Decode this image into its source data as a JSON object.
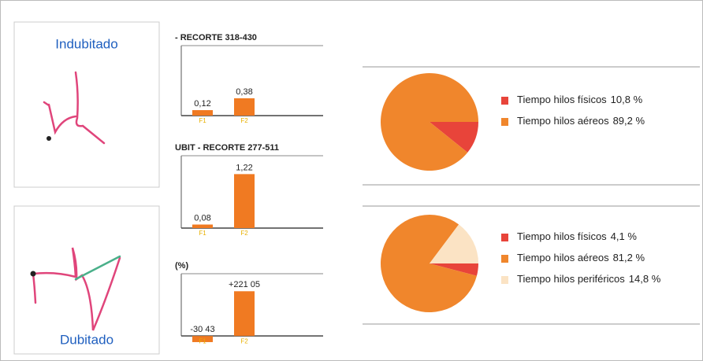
{
  "samples": [
    {
      "label": "Indubitado"
    },
    {
      "label": "Dubitado"
    }
  ],
  "bar_panels": [
    {
      "type": "bar",
      "title": "- RECORTE 318-430",
      "categories": [
        "F1",
        "F2"
      ],
      "values": [
        0.12,
        0.38
      ],
      "value_labels": [
        "0,12",
        "0,38"
      ],
      "color": "#f07a22",
      "ylim": [
        0,
        1.5
      ]
    },
    {
      "type": "bar",
      "title": "UBIT - RECORTE 277-511",
      "categories": [
        "F1",
        "F2"
      ],
      "values": [
        0.08,
        1.22
      ],
      "value_labels": [
        "0,08",
        "1,22"
      ],
      "color": "#f07a22",
      "ylim": [
        0,
        1.6
      ]
    },
    {
      "type": "bar",
      "title": "(%)",
      "categories": [
        "F1",
        "F2"
      ],
      "values": [
        -30.43,
        221.05
      ],
      "value_labels": [
        "-30 43",
        "+221 05"
      ],
      "color": "#f07a22",
      "ylim": [
        -50,
        300
      ]
    }
  ],
  "pies": [
    {
      "type": "pie",
      "series": [
        {
          "name": "Tiempo hilos físicos",
          "color": "#e8443a",
          "value": 10.8,
          "value_label": "10,8 %"
        },
        {
          "name": "Tiempo hilos aéreos",
          "color": "#f0862c",
          "value": 89.2,
          "value_label": "89,2 %"
        }
      ]
    },
    {
      "type": "pie",
      "series": [
        {
          "name": "Tiempo hilos físicos",
          "color": "#e8443a",
          "value": 4.1,
          "value_label": "4,1 %"
        },
        {
          "name": "Tiempo hilos aéreos",
          "color": "#f0862c",
          "value": 81.2,
          "value_label": "81,2 %"
        },
        {
          "name": "Tiempo hilos periféricos",
          "color": "#fbe3c4",
          "value": 14.8,
          "value_label": "14,8 %"
        }
      ]
    }
  ]
}
